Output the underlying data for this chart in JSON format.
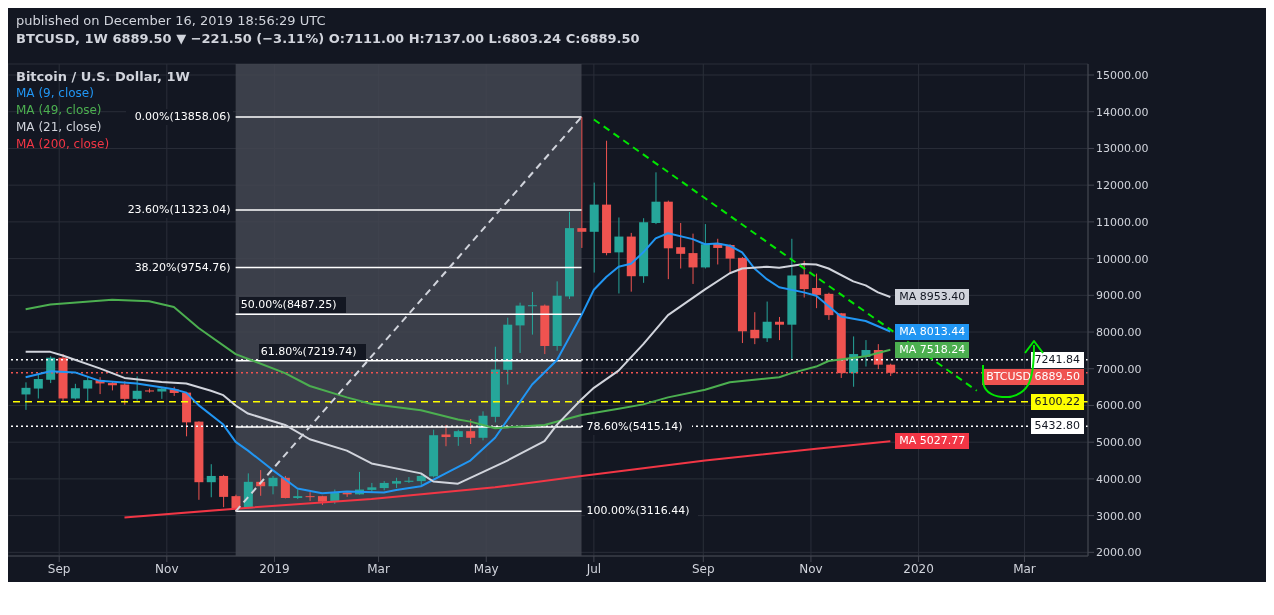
{
  "chart_data": {
    "type": "candlestick",
    "title": "Bitcoin / U.S. Dollar, 1W",
    "subtitle": "BTCUSD, 1W  6889.50 ▼ −221.50 (−3.11%) O:7111.00 H:7137.00 L:6803.24 C:6889.50",
    "annotations": [
      "published on December 16, 2019 18:56:29 UTC"
    ],
    "x": [
      "2018-08-13",
      "2018-08-20",
      "2018-08-27",
      "2018-09-03",
      "2018-09-10",
      "2018-09-17",
      "2018-09-24",
      "2018-10-01",
      "2018-10-08",
      "2018-10-15",
      "2018-10-22",
      "2018-10-29",
      "2018-11-05",
      "2018-11-12",
      "2018-11-19",
      "2018-11-26",
      "2018-12-03",
      "2018-12-10",
      "2018-12-17",
      "2018-12-24",
      "2018-12-31",
      "2019-01-07",
      "2019-01-14",
      "2019-01-21",
      "2019-01-28",
      "2019-02-04",
      "2019-02-11",
      "2019-02-18",
      "2019-02-25",
      "2019-03-04",
      "2019-03-11",
      "2019-03-18",
      "2019-03-25",
      "2019-04-01",
      "2019-04-08",
      "2019-04-15",
      "2019-04-22",
      "2019-04-29",
      "2019-05-06",
      "2019-05-13",
      "2019-05-20",
      "2019-05-27",
      "2019-06-03",
      "2019-06-10",
      "2019-06-17",
      "2019-06-24",
      "2019-07-01",
      "2019-07-08",
      "2019-07-15",
      "2019-07-22",
      "2019-07-29",
      "2019-08-05",
      "2019-08-12",
      "2019-08-19",
      "2019-08-26",
      "2019-09-02",
      "2019-09-09",
      "2019-09-16",
      "2019-09-23",
      "2019-09-30",
      "2019-10-07",
      "2019-10-14",
      "2019-10-21",
      "2019-10-28",
      "2019-11-04",
      "2019-11-11",
      "2019-11-18",
      "2019-11-25",
      "2019-12-02",
      "2019-12-09",
      "2019-12-16"
    ],
    "ohlc": [
      [
        6300,
        6630,
        5880,
        6480
      ],
      [
        6460,
        6860,
        6190,
        6720
      ],
      [
        6700,
        7340,
        6610,
        7300
      ],
      [
        7300,
        7400,
        6090,
        6190
      ],
      [
        6190,
        6590,
        6160,
        6470
      ],
      [
        6460,
        6770,
        6090,
        6690
      ],
      [
        6690,
        6770,
        6310,
        6600
      ],
      [
        6610,
        6650,
        6410,
        6550
      ],
      [
        6570,
        6660,
        6020,
        6180
      ],
      [
        6180,
        6790,
        6130,
        6400
      ],
      [
        6410,
        6460,
        6350,
        6380
      ],
      [
        6380,
        6480,
        6180,
        6460
      ],
      [
        6440,
        6510,
        6260,
        6340
      ],
      [
        6350,
        6370,
        5160,
        5540
      ],
      [
        5560,
        5570,
        3430,
        3910
      ],
      [
        3910,
        4400,
        3500,
        4080
      ],
      [
        4080,
        4110,
        3230,
        3510
      ],
      [
        3530,
        3570,
        3116.44,
        3190
      ],
      [
        3200,
        4150,
        3190,
        3920
      ],
      [
        3920,
        4240,
        3540,
        3800
      ],
      [
        3800,
        4080,
        3580,
        4030
      ],
      [
        4030,
        4080,
        3470,
        3480
      ],
      [
        3480,
        3710,
        3450,
        3530
      ],
      [
        3530,
        3640,
        3400,
        3510
      ],
      [
        3530,
        3540,
        3290,
        3380
      ],
      [
        3380,
        3710,
        3320,
        3630
      ],
      [
        3630,
        3640,
        3510,
        3580
      ],
      [
        3580,
        4190,
        3570,
        3710
      ],
      [
        3700,
        3890,
        3630,
        3770
      ],
      [
        3750,
        3940,
        3690,
        3890
      ],
      [
        3870,
        4030,
        3750,
        3940
      ],
      [
        3920,
        4050,
        3890,
        3950
      ],
      [
        3940,
        4130,
        3840,
        4080
      ],
      [
        4070,
        5340,
        4040,
        5190
      ],
      [
        5210,
        5470,
        4890,
        5140
      ],
      [
        5140,
        5340,
        4900,
        5300
      ],
      [
        5300,
        5630,
        4950,
        5120
      ],
      [
        5120,
        5840,
        5050,
        5720
      ],
      [
        5690,
        7600,
        5540,
        6980
      ],
      [
        6970,
        8390,
        6570,
        8200
      ],
      [
        8180,
        8800,
        7430,
        8720
      ],
      [
        8710,
        9090,
        7930,
        8730
      ],
      [
        8720,
        8750,
        7400,
        7620
      ],
      [
        7620,
        9380,
        7490,
        8990
      ],
      [
        8970,
        11270,
        8900,
        10830
      ],
      [
        10830,
        13858.06,
        10290,
        10730
      ],
      [
        10730,
        12070,
        9620,
        11470
      ],
      [
        11470,
        13210,
        10090,
        10150
      ],
      [
        10170,
        11120,
        9050,
        10600
      ],
      [
        10600,
        10700,
        9100,
        9520
      ],
      [
        9520,
        11100,
        9340,
        10990
      ],
      [
        10970,
        12350,
        10940,
        11550
      ],
      [
        11550,
        11580,
        9440,
        10280
      ],
      [
        10310,
        10970,
        9730,
        10130
      ],
      [
        10150,
        10680,
        9310,
        9760
      ],
      [
        9760,
        10940,
        9730,
        10390
      ],
      [
        10410,
        10540,
        9840,
        10290
      ],
      [
        10370,
        10390,
        9630,
        10000
      ],
      [
        10020,
        10040,
        7700,
        8020
      ],
      [
        8060,
        8540,
        7670,
        7830
      ],
      [
        7830,
        8830,
        7730,
        8280
      ],
      [
        8280,
        8410,
        7780,
        8200
      ],
      [
        8200,
        10540,
        7270,
        9540
      ],
      [
        9570,
        9940,
        8940,
        9170
      ],
      [
        9200,
        9590,
        8650,
        9010
      ],
      [
        9040,
        9070,
        8330,
        8460
      ],
      [
        8510,
        8520,
        6750,
        6880
      ],
      [
        6880,
        7880,
        6510,
        7400
      ],
      [
        7320,
        7780,
        7060,
        7510
      ],
      [
        7510,
        7670,
        6990,
        7111
      ],
      [
        7111,
        7137,
        6803.24,
        6889.5
      ]
    ],
    "colors": [
      "#26a69a",
      "#26a69a",
      "#26a69a",
      "#ef5350",
      "#26a69a",
      "#26a69a",
      "#ef5350",
      "#ef5350",
      "#ef5350",
      "#26a69a",
      "#ef5350",
      "#26a69a",
      "#ef5350",
      "#ef5350",
      "#ef5350",
      "#26a69a",
      "#ef5350",
      "#ef5350",
      "#26a69a",
      "#ef5350",
      "#26a69a",
      "#ef5350",
      "#26a69a",
      "#ef5350",
      "#ef5350",
      "#26a69a",
      "#ef5350",
      "#26a69a",
      "#26a69a",
      "#26a69a",
      "#26a69a",
      "#26a69a",
      "#26a69a",
      "#26a69a",
      "#ef5350",
      "#26a69a",
      "#ef5350",
      "#26a69a",
      "#26a69a",
      "#26a69a",
      "#26a69a",
      "#26a69a",
      "#ef5350",
      "#26a69a",
      "#26a69a",
      "#ef5350",
      "#26a69a",
      "#ef5350",
      "#26a69a",
      "#ef5350",
      "#26a69a",
      "#26a69a",
      "#ef5350",
      "#ef5350",
      "#ef5350",
      "#26a69a",
      "#ef5350",
      "#ef5350",
      "#ef5350",
      "#ef5350",
      "#26a69a",
      "#ef5350",
      "#26a69a",
      "#ef5350",
      "#ef5350",
      "#ef5350",
      "#ef5350",
      "#26a69a",
      "#26a69a",
      "#ef5350",
      "#ef5350"
    ],
    "series": [
      {
        "name": "MA (9, close)",
        "type": "line",
        "color": "#2196f3",
        "x": [
          "2018-08-13",
          "2018-08-27",
          "2018-09-10",
          "2018-09-24",
          "2018-10-15",
          "2018-11-05",
          "2018-11-12",
          "2018-11-19",
          "2018-12-03",
          "2018-12-10",
          "2018-12-17",
          "2018-12-31",
          "2019-01-14",
          "2019-01-28",
          "2019-02-11",
          "2019-03-04",
          "2019-03-11",
          "2019-03-25",
          "2019-04-08",
          "2019-04-22",
          "2019-05-06",
          "2019-05-27",
          "2019-06-10",
          "2019-06-24",
          "2019-07-01",
          "2019-07-08",
          "2019-07-15",
          "2019-07-22",
          "2019-07-29",
          "2019-08-05",
          "2019-08-12",
          "2019-08-26",
          "2019-09-02",
          "2019-09-09",
          "2019-09-16",
          "2019-09-23",
          "2019-09-30",
          "2019-10-07",
          "2019-10-14",
          "2019-10-28",
          "2019-11-04",
          "2019-11-18",
          "2019-12-02",
          "2019-12-16"
        ],
        "values": [
          6770,
          6930,
          6900,
          6670,
          6600,
          6440,
          6350,
          6010,
          5480,
          5010,
          4770,
          4240,
          3740,
          3610,
          3660,
          3630,
          3700,
          3800,
          4150,
          4500,
          5120,
          6570,
          7230,
          8460,
          9150,
          9500,
          9780,
          9860,
          10170,
          10550,
          10690,
          10530,
          10390,
          10410,
          10350,
          10170,
          9730,
          9440,
          9220,
          9080,
          8990,
          8420,
          8300,
          8013.44
        ],
        "value_labels": [
          null,
          null,
          null,
          null,
          null,
          null,
          null,
          null,
          null,
          null,
          null,
          null,
          null,
          null,
          null,
          null,
          null,
          null,
          null,
          null,
          null,
          null,
          null,
          null,
          null,
          null,
          null,
          null,
          null,
          null,
          null,
          null,
          null,
          null,
          null,
          null,
          null,
          null,
          null,
          null,
          null,
          null,
          null,
          "MA 8013.44"
        ]
      },
      {
        "name": "MA (49, close)",
        "type": "line",
        "color": "#4caf50",
        "x": [
          "2018-08-13",
          "2018-08-27",
          "2018-10-01",
          "2018-10-22",
          "2018-11-05",
          "2018-11-19",
          "2018-12-10",
          "2019-01-07",
          "2019-01-21",
          "2019-02-11",
          "2019-02-25",
          "2019-03-25",
          "2019-04-15",
          "2019-04-22",
          "2019-05-06",
          "2019-06-03",
          "2019-06-24",
          "2019-07-15",
          "2019-07-29",
          "2019-08-12",
          "2019-09-02",
          "2019-09-09",
          "2019-09-16",
          "2019-10-14",
          "2019-10-21",
          "2019-11-04",
          "2019-11-11",
          "2019-12-02",
          "2019-12-16"
        ],
        "values": [
          8620,
          8750,
          8880,
          8840,
          8680,
          8110,
          7400,
          6880,
          6530,
          6220,
          6040,
          5870,
          5620,
          5560,
          5380,
          5470,
          5740,
          5910,
          6030,
          6220,
          6430,
          6530,
          6630,
          6770,
          6880,
          7060,
          7210,
          7340,
          7518.24
        ],
        "value_labels": [
          null,
          null,
          null,
          null,
          null,
          null,
          null,
          null,
          null,
          null,
          null,
          null,
          null,
          null,
          null,
          null,
          null,
          null,
          null,
          null,
          null,
          null,
          null,
          null,
          null,
          null,
          null,
          null,
          "MA 7518.24"
        ]
      },
      {
        "name": "MA (21, close)",
        "type": "line",
        "color": "#d1d4dc",
        "x": [
          "2018-08-13",
          "2018-08-27",
          "2018-09-03",
          "2018-09-24",
          "2018-10-08",
          "2018-10-29",
          "2018-11-12",
          "2018-11-26",
          "2018-12-03",
          "2018-12-10",
          "2018-12-17",
          "2019-01-07",
          "2019-01-21",
          "2019-02-11",
          "2019-02-25",
          "2019-03-25",
          "2019-04-01",
          "2019-04-15",
          "2019-05-13",
          "2019-06-03",
          "2019-06-10",
          "2019-06-24",
          "2019-07-01",
          "2019-07-15",
          "2019-07-29",
          "2019-08-12",
          "2019-09-02",
          "2019-09-16",
          "2019-09-23",
          "2019-10-07",
          "2019-10-14",
          "2019-10-28",
          "2019-11-04",
          "2019-11-11",
          "2019-11-25",
          "2019-12-02",
          "2019-12-09",
          "2019-12-16"
        ],
        "values": [
          7460,
          7460,
          7360,
          7010,
          6750,
          6640,
          6600,
          6400,
          6280,
          6000,
          5780,
          5470,
          5080,
          4770,
          4420,
          4150,
          3930,
          3870,
          4500,
          5030,
          5470,
          6170,
          6480,
          6950,
          7670,
          8460,
          9160,
          9600,
          9730,
          9780,
          9750,
          9850,
          9840,
          9730,
          9380,
          9270,
          9080,
          8953.4
        ],
        "value_labels": [
          null,
          null,
          null,
          null,
          null,
          null,
          null,
          null,
          null,
          null,
          null,
          null,
          null,
          null,
          null,
          null,
          null,
          null,
          null,
          null,
          null,
          null,
          null,
          null,
          null,
          null,
          null,
          null,
          null,
          null,
          null,
          null,
          null,
          null,
          null,
          null,
          null,
          "MA 8953.40"
        ]
      },
      {
        "name": "MA (200, close)",
        "type": "line",
        "color": "#f23645",
        "x": [
          "2018-10-08",
          "2018-12-10",
          "2019-02-25",
          "2019-05-06",
          "2019-06-24",
          "2019-09-02",
          "2019-11-04",
          "2019-12-16"
        ],
        "values": [
          2950,
          3190,
          3450,
          3770,
          4080,
          4500,
          4820,
          5027.77
        ],
        "value_labels": [
          null,
          null,
          null,
          null,
          null,
          null,
          null,
          "MA 5027.77"
        ]
      },
      {
        "type": "line",
        "color": "#00e600",
        "line_style": "dashed",
        "x": [
          "2019-07-01",
          "2020-02-03"
        ],
        "values": [
          13790,
          6400
        ]
      },
      {
        "type": "line",
        "color": "#d1d4dc",
        "line_style": "dashed",
        "x": [
          "2018-12-10",
          "2019-06-24"
        ],
        "values": [
          3116.44,
          13858.06
        ]
      }
    ],
    "bands": [
      {
        "axis": "x",
        "from": "2018-12-10",
        "to": "2019-06-24",
        "color": "#434651"
      }
    ],
    "ref_lines": [
      {
        "axis": "y",
        "value": 13858.06,
        "label": "0.00%(13858.06)",
        "color": "#ffffff",
        "line_style": "solid"
      },
      {
        "axis": "y",
        "value": 11323.04,
        "label": "23.60%(11323.04)",
        "color": "#ffffff",
        "line_style": "solid"
      },
      {
        "axis": "y",
        "value": 9754.76,
        "label": "38.20%(9754.76)",
        "color": "#ffffff",
        "line_style": "solid"
      },
      {
        "axis": "y",
        "value": 8487.25,
        "label": "50.00%(8487.25)",
        "color": "#ffffff",
        "line_style": "solid"
      },
      {
        "axis": "y",
        "value": 7219.74,
        "label": "61.80%(7219.74)",
        "color": "#ffffff",
        "line_style": "solid"
      },
      {
        "axis": "y",
        "value": 5415.14,
        "label": "78.60%(5415.14)",
        "color": "#ffffff",
        "line_style": "solid"
      },
      {
        "axis": "y",
        "value": 3116.44,
        "label": "100.00%(3116.44)",
        "color": "#ffffff",
        "line_style": "solid"
      },
      {
        "axis": "y",
        "value": 7241.84,
        "label": "7241.84",
        "color": "#ffffff",
        "line_style": "dotted"
      },
      {
        "axis": "y",
        "value": 6889.5,
        "label": "BTCUSD 6889.50",
        "color": "#ef5350",
        "line_style": "dotted"
      },
      {
        "axis": "y",
        "value": 6100.22,
        "label": "6100.22",
        "color": "#ffff00",
        "line_style": "dashed"
      },
      {
        "axis": "y",
        "value": 5432.8,
        "label": "5432.80",
        "color": "#ffffff",
        "line_style": "dotted"
      }
    ],
    "xlim": [
      "2018-08-03",
      "2020-04-06"
    ],
    "xticks": [
      {
        "value": "2018-09-01",
        "label": "Sep"
      },
      {
        "value": "2018-11-01",
        "label": "Nov"
      },
      {
        "value": "2019-01-01",
        "label": "2019"
      },
      {
        "value": "2019-03-01",
        "label": "Mar"
      },
      {
        "value": "2019-05-01",
        "label": "May"
      },
      {
        "value": "2019-07-01",
        "label": "Jul"
      },
      {
        "value": "2019-09-01",
        "label": "Sep"
      },
      {
        "value": "2019-11-01",
        "label": "Nov"
      },
      {
        "value": "2020-01-01",
        "label": "2020"
      },
      {
        "value": "2020-03-01",
        "label": "Mar"
      }
    ],
    "ylim": [
      1900,
      15300
    ],
    "yticks": [
      {
        "value": 2000,
        "label": "2000.00"
      },
      {
        "value": 3000,
        "label": "3000.00"
      },
      {
        "value": 4000,
        "label": "4000.00"
      },
      {
        "value": 5000,
        "label": "5000.00"
      },
      {
        "value": 6000,
        "label": "6000.00"
      },
      {
        "value": 7000,
        "label": "7000.00"
      },
      {
        "value": 8000,
        "label": "8000.00"
      },
      {
        "value": 9000,
        "label": "9000.00"
      },
      {
        "value": 10000,
        "label": "10000.00"
      },
      {
        "value": 11000,
        "label": "11000.00"
      },
      {
        "value": 12000,
        "label": "12000.00"
      },
      {
        "value": 13000,
        "label": "13000.00"
      },
      {
        "value": 14000,
        "label": "14000.00"
      },
      {
        "value": 15000,
        "label": "15000.00"
      }
    ],
    "grid": true,
    "legend": "top left"
  }
}
